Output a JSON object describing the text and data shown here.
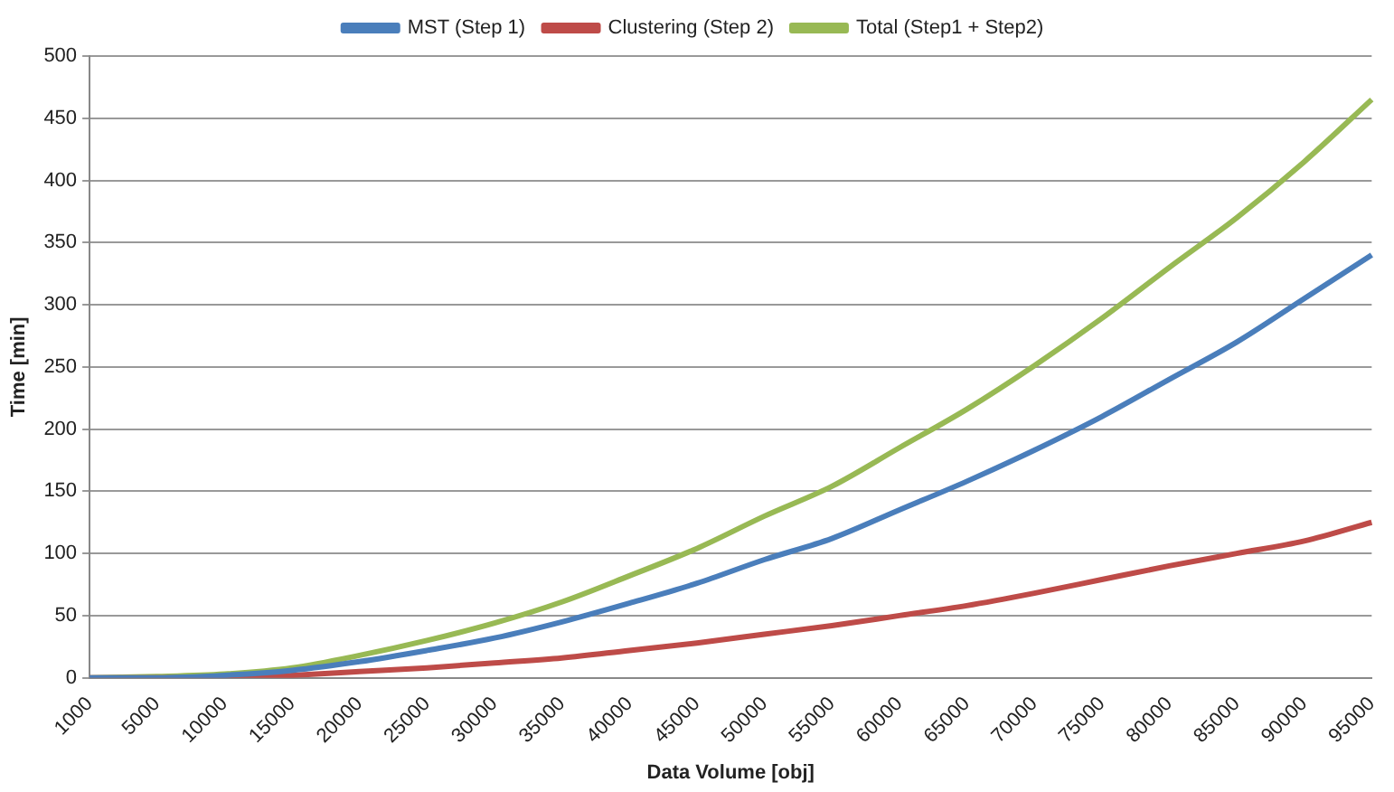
{
  "chart_data": {
    "type": "line",
    "xlabel": "Data Volume [obj]",
    "ylabel": "Time [min]",
    "categories": [
      "1000",
      "5000",
      "10000",
      "15000",
      "20000",
      "25000",
      "30000",
      "35000",
      "40000",
      "45000",
      "50000",
      "55000",
      "60000",
      "65000",
      "70000",
      "75000",
      "80000",
      "85000",
      "90000",
      "95000"
    ],
    "series": [
      {
        "name": "MST (Step 1)",
        "color": "#4a7ebb",
        "values": [
          0,
          0,
          2,
          6,
          13,
          22,
          32,
          45,
          60,
          76,
          95,
          112,
          135,
          158,
          183,
          210,
          240,
          270,
          305,
          340
        ]
      },
      {
        "name": "Clustering (Step 2)",
        "color": "#be4b48",
        "values": [
          0,
          0,
          0,
          2,
          5,
          8,
          12,
          16,
          22,
          28,
          35,
          42,
          50,
          58,
          68,
          79,
          90,
          100,
          110,
          125
        ]
      },
      {
        "name": "Total (Step1 + Step2)",
        "color": "#98b954",
        "values": [
          0,
          1,
          3,
          8,
          18,
          30,
          44,
          61,
          82,
          104,
          130,
          154,
          185,
          216,
          251,
          289,
          330,
          370,
          415,
          465
        ]
      }
    ],
    "ylim": [
      0,
      500
    ],
    "yticks": [
      0,
      50,
      100,
      150,
      200,
      250,
      300,
      350,
      400,
      450,
      500
    ],
    "grid": "y",
    "legend": "top",
    "marker": "none",
    "line_style": "solid"
  }
}
